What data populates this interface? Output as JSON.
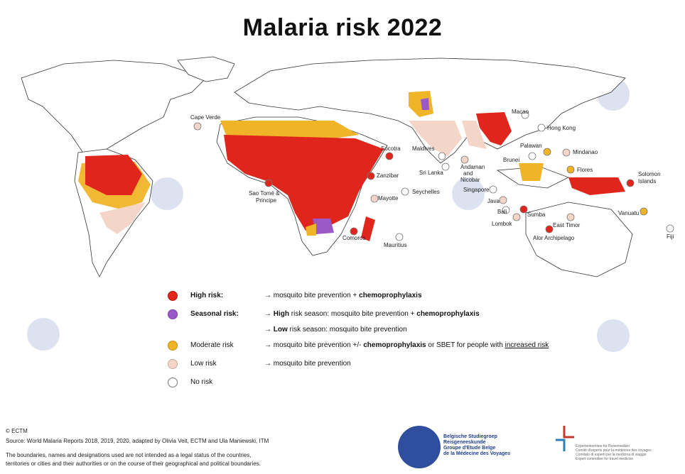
{
  "title": "Malaria risk 2022",
  "colors": {
    "high": "#e0261c",
    "seasonal": "#9b59c8",
    "moderate": "#f0b429",
    "low": "#f6d5c9",
    "none": "#ffffff"
  },
  "map_labels": [
    {
      "text": "Cape Verde",
      "risk": "low"
    },
    {
      "text": "Socotra",
      "risk": "high"
    },
    {
      "text": "Zanzibar",
      "risk": "high"
    },
    {
      "text": "Sao Tomé &",
      "risk": "high"
    },
    {
      "text": "Principe",
      "risk": "high"
    },
    {
      "text": "Mayotte",
      "risk": "low"
    },
    {
      "text": "Seychelles",
      "risk": "none"
    },
    {
      "text": "Comoros",
      "risk": "high"
    },
    {
      "text": "Mauritius",
      "risk": "none"
    },
    {
      "text": "Maldives",
      "risk": "none"
    },
    {
      "text": "Sri Lanka",
      "risk": "none"
    },
    {
      "text": "Andaman",
      "risk": "low"
    },
    {
      "text": "and",
      "risk": "low"
    },
    {
      "text": "Nicobar",
      "risk": "low"
    },
    {
      "text": "Singapore",
      "risk": "none"
    },
    {
      "text": "Macao",
      "risk": "none"
    },
    {
      "text": "Hong Kong",
      "risk": "none"
    },
    {
      "text": "Palawan",
      "risk": "moderate"
    },
    {
      "text": "Mindanao",
      "risk": "low"
    },
    {
      "text": "Brunei",
      "risk": "none"
    },
    {
      "text": "Flores",
      "risk": "moderate"
    },
    {
      "text": "Java",
      "risk": "low"
    },
    {
      "text": "Bali",
      "risk": "none"
    },
    {
      "text": "Lombok",
      "risk": "low"
    },
    {
      "text": "Sumba",
      "risk": "high"
    },
    {
      "text": "East Timor",
      "risk": "low"
    },
    {
      "text": "Alor Archipelago",
      "risk": "high"
    },
    {
      "text": "Solomon",
      "risk": "high"
    },
    {
      "text": "Islands",
      "risk": "high"
    },
    {
      "text": "Vanuatu",
      "risk": "moderate"
    },
    {
      "text": "Fiji",
      "risk": "none"
    }
  ],
  "legend": {
    "high": {
      "name": "High risk:",
      "arrow": "→ mosquito bite prevention + ",
      "bold": "chemoprophylaxis"
    },
    "seasonal": {
      "name": "Seasonal risk:",
      "arrow": "→ ",
      "b1": "High",
      "t1": " risk season: mosquito bite prevention + ",
      "b2": "chemoprophylaxis"
    },
    "seasonal_low": {
      "arrow": "→ ",
      "b1": "Low",
      "t1": " risk season: mosquito bite prevention"
    },
    "moderate": {
      "name": "Moderate risk",
      "t0": "→ mosquito bite prevention +/- ",
      "b1": "chemoprophylaxis",
      "t1": " or SBET for people with ",
      "u1": "increased risk"
    },
    "low": {
      "name": "Low risk",
      "desc": "→ mosquito bite prevention"
    },
    "none": {
      "name": "No risk"
    }
  },
  "footer": {
    "copyright": "© ECTM",
    "source": "Source: World Malaria Reports 2018, 2019, 2020, adapted by Olivia Veit, ECTM and Ula Maniewski, ITM",
    "disclaimer1": "The boundaries, names and designations used are not intended as a legal status of the countries,",
    "disclaimer2": "territories or cities and their authorities or on the course of their geographical and political boundaries."
  },
  "logo1": {
    "l1": "Belgische Studiegroep",
    "l2": "Reisgeneeskunde",
    "l3": "Groupe d'Etude Belge",
    "l4": "de la Médecine des Voyages"
  },
  "logo2": {
    "l1": "Expertenkomitee für Reisemedizin",
    "l2": "Comité d'experts pour la médecine des voyages",
    "l3": "Comitato di esperti per la medicina di viaggio",
    "l4": "Expert committee for travel medicine"
  }
}
